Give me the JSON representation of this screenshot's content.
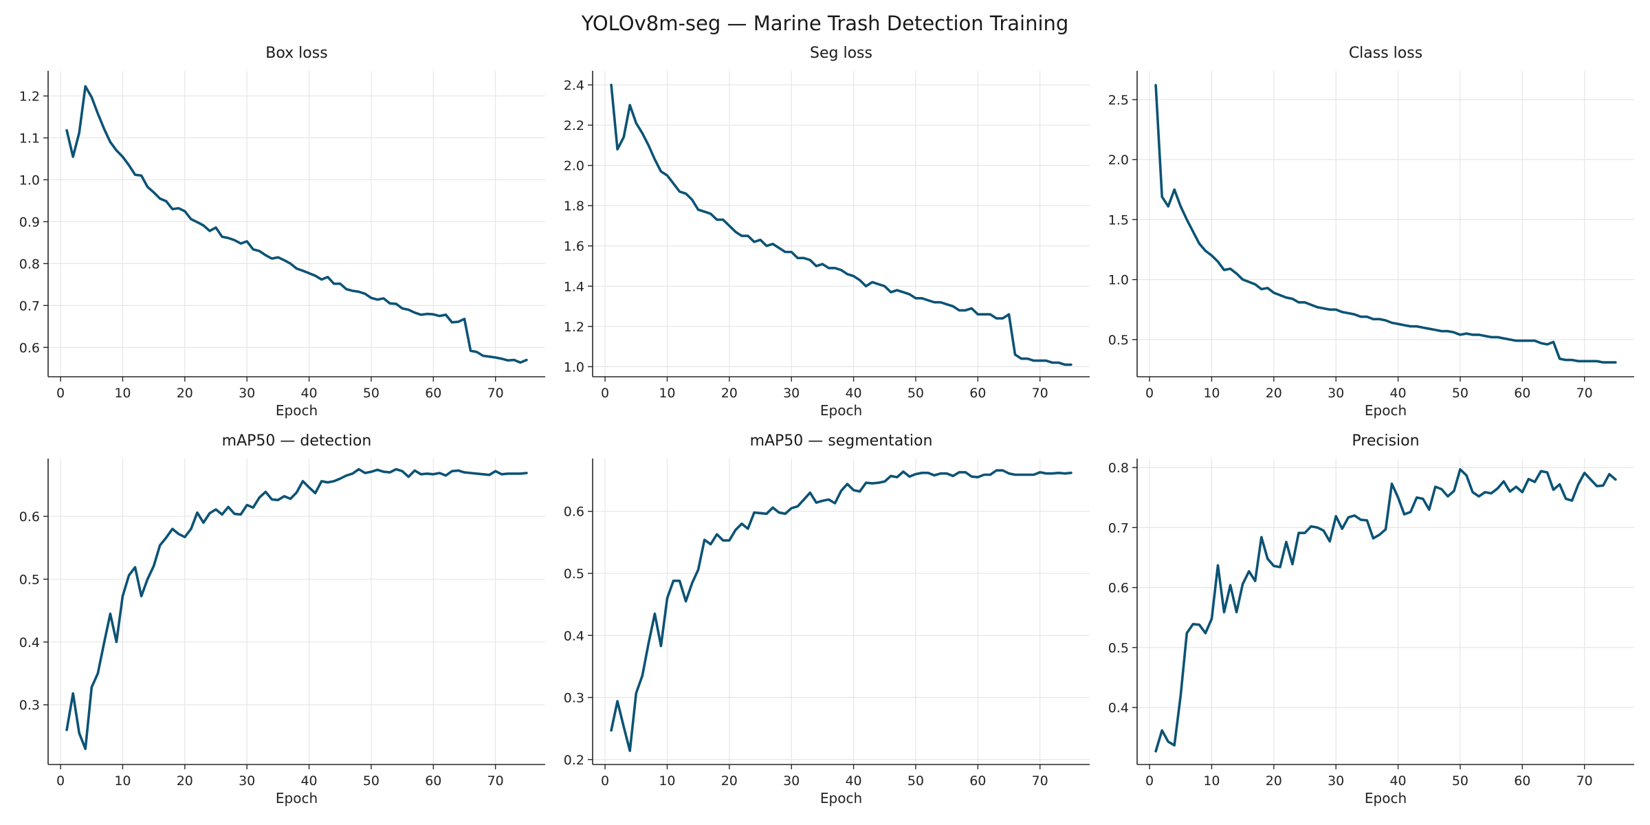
{
  "figure": {
    "title": "YOLOv8m-seg — Marine Trash Detection Training",
    "line_color": "#0b5375",
    "grid_color": "#e6e6e6"
  },
  "chart_data": [
    {
      "type": "line",
      "title": "Box loss",
      "xlabel": "Epoch",
      "ylabel": "",
      "xlim": [
        -2,
        78
      ],
      "ylim": [
        0.53,
        1.26
      ],
      "xticks": [
        0,
        10,
        20,
        30,
        40,
        50,
        60,
        70
      ],
      "yticks": [
        0.6,
        0.7,
        0.8,
        0.9,
        1.0,
        1.1,
        1.2
      ],
      "tick_format": "1",
      "grid": true,
      "series": [
        {
          "x": [
            1,
            2,
            3,
            4,
            5,
            6,
            7,
            8,
            9,
            10,
            11,
            12,
            13,
            14,
            15,
            16,
            17,
            18,
            19,
            20,
            21,
            22,
            23,
            24,
            25,
            26,
            27,
            28,
            29,
            30,
            31,
            32,
            33,
            34,
            35,
            36,
            37,
            38,
            39,
            40,
            41,
            42,
            43,
            44,
            45,
            46,
            47,
            48,
            49,
            50,
            51,
            52,
            53,
            54,
            55,
            56,
            57,
            58,
            59,
            60,
            61,
            62,
            63,
            64,
            65,
            66,
            67,
            68,
            69,
            70,
            71,
            72,
            73,
            74,
            75
          ],
          "y": [
            1.118,
            1.055,
            1.112,
            1.223,
            1.197,
            1.158,
            1.122,
            1.09,
            1.07,
            1.055,
            1.035,
            1.012,
            1.01,
            0.983,
            0.97,
            0.955,
            0.949,
            0.93,
            0.932,
            0.925,
            0.906,
            0.899,
            0.891,
            0.878,
            0.886,
            0.864,
            0.861,
            0.856,
            0.848,
            0.853,
            0.834,
            0.83,
            0.82,
            0.812,
            0.815,
            0.808,
            0.8,
            0.788,
            0.783,
            0.777,
            0.771,
            0.762,
            0.768,
            0.752,
            0.752,
            0.739,
            0.735,
            0.733,
            0.728,
            0.718,
            0.714,
            0.717,
            0.705,
            0.704,
            0.693,
            0.69,
            0.683,
            0.678,
            0.68,
            0.679,
            0.675,
            0.678,
            0.66,
            0.661,
            0.668,
            0.592,
            0.589,
            0.58,
            0.578,
            0.576,
            0.573,
            0.569,
            0.57,
            0.564,
            0.57
          ]
        }
      ]
    },
    {
      "type": "line",
      "title": "Seg loss",
      "xlabel": "Epoch",
      "ylabel": "",
      "xlim": [
        -2,
        78
      ],
      "ylim": [
        0.95,
        2.47
      ],
      "xticks": [
        0,
        10,
        20,
        30,
        40,
        50,
        60,
        70
      ],
      "yticks": [
        1.0,
        1.2,
        1.4,
        1.6,
        1.8,
        2.0,
        2.2,
        2.4
      ],
      "tick_format": "1",
      "grid": true,
      "series": [
        {
          "x": [
            1,
            2,
            3,
            4,
            5,
            6,
            7,
            8,
            9,
            10,
            11,
            12,
            13,
            14,
            15,
            16,
            17,
            18,
            19,
            20,
            21,
            22,
            23,
            24,
            25,
            26,
            27,
            28,
            29,
            30,
            31,
            32,
            33,
            34,
            35,
            36,
            37,
            38,
            39,
            40,
            41,
            42,
            43,
            44,
            45,
            46,
            47,
            48,
            49,
            50,
            51,
            52,
            53,
            54,
            55,
            56,
            57,
            58,
            59,
            60,
            61,
            62,
            63,
            64,
            65,
            66,
            67,
            68,
            69,
            70,
            71,
            72,
            73,
            74,
            75
          ],
          "y": [
            2.4,
            2.08,
            2.14,
            2.3,
            2.21,
            2.16,
            2.1,
            2.03,
            1.97,
            1.95,
            1.91,
            1.87,
            1.86,
            1.83,
            1.78,
            1.77,
            1.76,
            1.73,
            1.73,
            1.7,
            1.67,
            1.65,
            1.65,
            1.62,
            1.63,
            1.6,
            1.61,
            1.59,
            1.57,
            1.57,
            1.54,
            1.54,
            1.53,
            1.5,
            1.51,
            1.49,
            1.49,
            1.48,
            1.46,
            1.45,
            1.43,
            1.4,
            1.42,
            1.41,
            1.4,
            1.37,
            1.38,
            1.37,
            1.36,
            1.34,
            1.34,
            1.33,
            1.32,
            1.32,
            1.31,
            1.3,
            1.28,
            1.28,
            1.29,
            1.26,
            1.26,
            1.26,
            1.24,
            1.24,
            1.26,
            1.06,
            1.04,
            1.04,
            1.03,
            1.03,
            1.03,
            1.02,
            1.02,
            1.01,
            1.01
          ]
        }
      ]
    },
    {
      "type": "line",
      "title": "Class loss",
      "xlabel": "Epoch",
      "ylabel": "",
      "xlim": [
        -2,
        78
      ],
      "ylim": [
        0.19,
        2.74
      ],
      "xticks": [
        0,
        10,
        20,
        30,
        40,
        50,
        60,
        70
      ],
      "yticks": [
        0.5,
        1.0,
        1.5,
        2.0,
        2.5
      ],
      "tick_format": "1",
      "grid": true,
      "series": [
        {
          "x": [
            1,
            2,
            3,
            4,
            5,
            6,
            7,
            8,
            9,
            10,
            11,
            12,
            13,
            14,
            15,
            16,
            17,
            18,
            19,
            20,
            21,
            22,
            23,
            24,
            25,
            26,
            27,
            28,
            29,
            30,
            31,
            32,
            33,
            34,
            35,
            36,
            37,
            38,
            39,
            40,
            41,
            42,
            43,
            44,
            45,
            46,
            47,
            48,
            49,
            50,
            51,
            52,
            53,
            54,
            55,
            56,
            57,
            58,
            59,
            60,
            61,
            62,
            63,
            64,
            65,
            66,
            67,
            68,
            69,
            70,
            71,
            72,
            73,
            74,
            75
          ],
          "y": [
            2.62,
            1.69,
            1.61,
            1.75,
            1.61,
            1.5,
            1.4,
            1.3,
            1.24,
            1.2,
            1.15,
            1.08,
            1.09,
            1.05,
            1.0,
            0.98,
            0.96,
            0.92,
            0.93,
            0.89,
            0.87,
            0.85,
            0.84,
            0.81,
            0.81,
            0.79,
            0.77,
            0.76,
            0.75,
            0.75,
            0.73,
            0.72,
            0.71,
            0.69,
            0.69,
            0.67,
            0.67,
            0.66,
            0.64,
            0.63,
            0.62,
            0.61,
            0.61,
            0.6,
            0.59,
            0.58,
            0.57,
            0.57,
            0.56,
            0.54,
            0.55,
            0.54,
            0.54,
            0.53,
            0.52,
            0.52,
            0.51,
            0.5,
            0.49,
            0.49,
            0.49,
            0.49,
            0.47,
            0.46,
            0.48,
            0.34,
            0.33,
            0.33,
            0.32,
            0.32,
            0.32,
            0.32,
            0.31,
            0.31,
            0.31
          ]
        }
      ]
    },
    {
      "type": "line",
      "title": "mAP50 — detection",
      "xlabel": "Epoch",
      "ylabel": "",
      "xlim": [
        -2,
        78
      ],
      "ylim": [
        0.205,
        0.692
      ],
      "xticks": [
        0,
        10,
        20,
        30,
        40,
        50,
        60,
        70
      ],
      "yticks": [
        0.3,
        0.4,
        0.5,
        0.6
      ],
      "tick_format": "1",
      "grid": true,
      "series": [
        {
          "x": [
            1,
            2,
            3,
            4,
            5,
            6,
            7,
            8,
            9,
            10,
            11,
            12,
            13,
            14,
            15,
            16,
            17,
            18,
            19,
            20,
            21,
            22,
            23,
            24,
            25,
            26,
            27,
            28,
            29,
            30,
            31,
            32,
            33,
            34,
            35,
            36,
            37,
            38,
            39,
            40,
            41,
            42,
            43,
            44,
            45,
            46,
            47,
            48,
            49,
            50,
            51,
            52,
            53,
            54,
            55,
            56,
            57,
            58,
            59,
            60,
            61,
            62,
            63,
            64,
            65,
            66,
            67,
            68,
            69,
            70,
            71,
            72,
            73,
            74,
            75
          ],
          "y": [
            0.26,
            0.318,
            0.255,
            0.23,
            0.328,
            0.35,
            0.398,
            0.445,
            0.4,
            0.473,
            0.506,
            0.519,
            0.473,
            0.5,
            0.521,
            0.554,
            0.566,
            0.58,
            0.572,
            0.567,
            0.58,
            0.606,
            0.59,
            0.605,
            0.611,
            0.603,
            0.615,
            0.604,
            0.603,
            0.618,
            0.614,
            0.63,
            0.639,
            0.627,
            0.626,
            0.632,
            0.628,
            0.638,
            0.656,
            0.646,
            0.637,
            0.656,
            0.654,
            0.656,
            0.66,
            0.665,
            0.668,
            0.675,
            0.669,
            0.671,
            0.674,
            0.671,
            0.67,
            0.675,
            0.672,
            0.663,
            0.673,
            0.667,
            0.668,
            0.667,
            0.669,
            0.665,
            0.672,
            0.673,
            0.67,
            0.669,
            0.668,
            0.667,
            0.666,
            0.672,
            0.667,
            0.668,
            0.668,
            0.668,
            0.669
          ]
        }
      ]
    },
    {
      "type": "line",
      "title": "mAP50 — segmentation",
      "xlabel": "Epoch",
      "ylabel": "",
      "xlim": [
        -2,
        78
      ],
      "ylim": [
        0.192,
        0.685
      ],
      "xticks": [
        0,
        10,
        20,
        30,
        40,
        50,
        60,
        70
      ],
      "yticks": [
        0.2,
        0.3,
        0.4,
        0.5,
        0.6
      ],
      "tick_format": "1",
      "grid": true,
      "series": [
        {
          "x": [
            1,
            2,
            3,
            4,
            5,
            6,
            7,
            8,
            9,
            10,
            11,
            12,
            13,
            14,
            15,
            16,
            17,
            18,
            19,
            20,
            21,
            22,
            23,
            24,
            25,
            26,
            27,
            28,
            29,
            30,
            31,
            32,
            33,
            34,
            35,
            36,
            37,
            38,
            39,
            40,
            41,
            42,
            43,
            44,
            45,
            46,
            47,
            48,
            49,
            50,
            51,
            52,
            53,
            54,
            55,
            56,
            57,
            58,
            59,
            60,
            61,
            62,
            63,
            64,
            65,
            66,
            67,
            68,
            69,
            70,
            71,
            72,
            73,
            74,
            75
          ],
          "y": [
            0.247,
            0.294,
            0.253,
            0.214,
            0.307,
            0.335,
            0.387,
            0.435,
            0.383,
            0.46,
            0.488,
            0.488,
            0.455,
            0.484,
            0.506,
            0.554,
            0.547,
            0.563,
            0.553,
            0.553,
            0.57,
            0.58,
            0.572,
            0.598,
            0.597,
            0.596,
            0.606,
            0.598,
            0.596,
            0.605,
            0.608,
            0.619,
            0.63,
            0.614,
            0.617,
            0.619,
            0.613,
            0.633,
            0.644,
            0.634,
            0.632,
            0.646,
            0.645,
            0.646,
            0.648,
            0.657,
            0.655,
            0.664,
            0.656,
            0.66,
            0.662,
            0.662,
            0.658,
            0.661,
            0.661,
            0.657,
            0.663,
            0.663,
            0.656,
            0.655,
            0.659,
            0.659,
            0.666,
            0.666,
            0.661,
            0.659,
            0.659,
            0.659,
            0.659,
            0.663,
            0.661,
            0.661,
            0.662,
            0.661,
            0.662
          ]
        }
      ]
    },
    {
      "type": "line",
      "title": "Precision",
      "xlabel": "Epoch",
      "ylabel": "",
      "xlim": [
        -2,
        78
      ],
      "ylim": [
        0.305,
        0.815
      ],
      "xticks": [
        0,
        10,
        20,
        30,
        40,
        50,
        60,
        70
      ],
      "yticks": [
        0.4,
        0.5,
        0.6,
        0.7,
        0.8
      ],
      "tick_format": "1",
      "grid": true,
      "series": [
        {
          "x": [
            1,
            2,
            3,
            4,
            5,
            6,
            7,
            8,
            9,
            10,
            11,
            12,
            13,
            14,
            15,
            16,
            17,
            18,
            19,
            20,
            21,
            22,
            23,
            24,
            25,
            26,
            27,
            28,
            29,
            30,
            31,
            32,
            33,
            34,
            35,
            36,
            37,
            38,
            39,
            40,
            41,
            42,
            43,
            44,
            45,
            46,
            47,
            48,
            49,
            50,
            51,
            52,
            53,
            54,
            55,
            56,
            57,
            58,
            59,
            60,
            61,
            62,
            63,
            64,
            65,
            66,
            67,
            68,
            69,
            70,
            71,
            72,
            73,
            74,
            75
          ],
          "y": [
            0.327,
            0.362,
            0.343,
            0.337,
            0.42,
            0.524,
            0.539,
            0.538,
            0.524,
            0.548,
            0.637,
            0.559,
            0.604,
            0.559,
            0.606,
            0.627,
            0.611,
            0.684,
            0.648,
            0.636,
            0.634,
            0.676,
            0.639,
            0.691,
            0.691,
            0.702,
            0.7,
            0.695,
            0.677,
            0.719,
            0.698,
            0.717,
            0.72,
            0.713,
            0.712,
            0.682,
            0.688,
            0.697,
            0.773,
            0.75,
            0.722,
            0.726,
            0.75,
            0.748,
            0.73,
            0.768,
            0.764,
            0.752,
            0.761,
            0.797,
            0.787,
            0.759,
            0.752,
            0.759,
            0.757,
            0.765,
            0.777,
            0.76,
            0.768,
            0.759,
            0.781,
            0.776,
            0.794,
            0.792,
            0.763,
            0.772,
            0.748,
            0.745,
            0.772,
            0.791,
            0.78,
            0.769,
            0.77,
            0.789,
            0.78
          ]
        }
      ]
    }
  ]
}
